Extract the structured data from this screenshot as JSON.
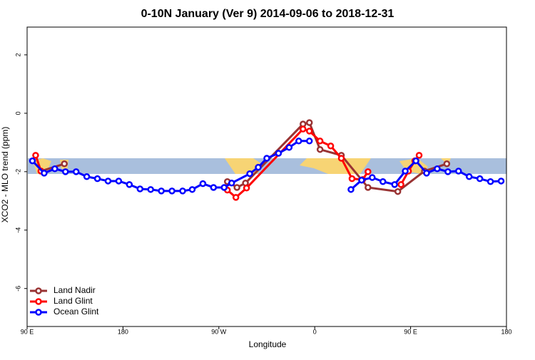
{
  "chart_data": {
    "type": "line",
    "title": "0-10N January (Ver 9)   2014-09-06 to 2018-12-31",
    "x_label": "Longitude",
    "y_label": "XCO2 - MLO trend (ppm)",
    "xlim": [
      90,
      540
    ],
    "ylim": [
      -7.3,
      2.95
    ],
    "xticks": [
      {
        "value": 90,
        "label": "90 E"
      },
      180,
      {
        "value": 270,
        "label": "90 W"
      },
      {
        "value": 360,
        "label": "0"
      },
      {
        "value": 450,
        "label": "90 E"
      },
      {
        "value": 540,
        "label": "180"
      }
    ],
    "yticks": [
      -6,
      -4,
      -2,
      0,
      2
    ],
    "legend": "bottom-left",
    "series": [
      {
        "name": "Land Nadir",
        "color": "#993333",
        "x": [
          103,
          125,
          200,
          278,
          287,
          295,
          349,
          355,
          365,
          385,
          410,
          438,
          463,
          484
        ],
        "values": [
          -1.98,
          -1.73,
          null,
          -2.34,
          -2.54,
          -2.39,
          -0.37,
          -0.32,
          -1.24,
          -1.44,
          -2.54,
          -2.68,
          -1.98,
          -1.73
        ]
      },
      {
        "name": "Land Glint",
        "color": "#ff0000",
        "x": [
          98,
          103,
          200,
          278,
          286,
          296,
          349,
          355,
          365,
          375,
          385,
          395,
          405,
          410,
          425,
          441,
          448,
          454,
          458
        ],
        "values": [
          -1.44,
          -1.98,
          null,
          -2.63,
          -2.88,
          -2.56,
          -0.54,
          -0.61,
          -0.95,
          -1.12,
          -1.54,
          -2.24,
          -2.27,
          -2.0,
          null,
          -2.44,
          -1.98,
          -1.63,
          -1.44
        ]
      },
      {
        "name": "Ocean Glint",
        "color": "#0000ff",
        "x": [
          95,
          106,
          116,
          126,
          136,
          146,
          156,
          166,
          176,
          186,
          196,
          206,
          216,
          226,
          236,
          245,
          255,
          265,
          275,
          282,
          299,
          307,
          315,
          326,
          336,
          345,
          355,
          375,
          394,
          404,
          414,
          424,
          435,
          445,
          455,
          465,
          475,
          485,
          495,
          505,
          515,
          525,
          535
        ],
        "values": [
          -1.63,
          -2.05,
          -1.9,
          -2.0,
          -2.0,
          -2.17,
          -2.24,
          -2.32,
          -2.32,
          -2.44,
          -2.59,
          -2.61,
          -2.66,
          -2.66,
          -2.66,
          -2.61,
          -2.41,
          -2.54,
          -2.54,
          -2.39,
          -2.07,
          -1.85,
          -1.54,
          -1.37,
          -1.17,
          -0.95,
          -0.95,
          null,
          -2.61,
          -2.29,
          -2.2,
          -2.34,
          -2.44,
          -1.98,
          -1.63,
          -2.05,
          -1.9,
          -2.0,
          -1.98,
          -2.17,
          -2.24,
          -2.34,
          -2.32
        ]
      }
    ]
  }
}
